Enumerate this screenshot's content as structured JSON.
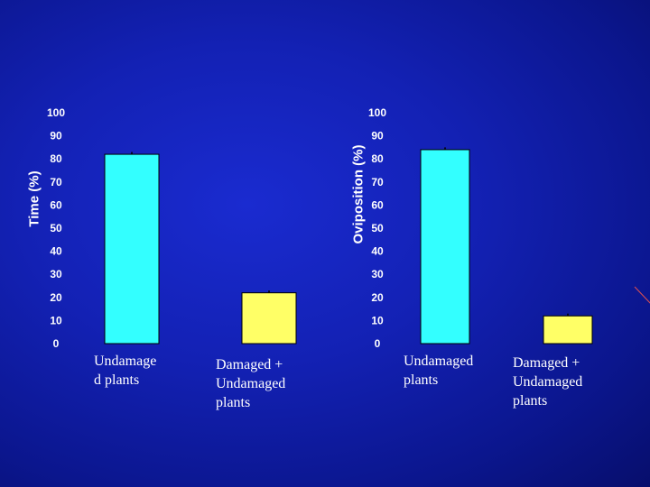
{
  "slide": {
    "background_color": "#1321b4",
    "accent_line_color": "#e05050"
  },
  "chart_data": [
    {
      "type": "bar",
      "ylabel": "Time (%)",
      "ylim": [
        0,
        100
      ],
      "yticks": [
        0,
        10,
        20,
        30,
        40,
        50,
        60,
        70,
        80,
        90,
        100
      ],
      "categories": [
        "Undamage\nd plants",
        "Damaged +\nUndamaged\nplants"
      ],
      "values": [
        82,
        22
      ],
      "errors": [
        1,
        1
      ],
      "bar_colors": [
        "#33ffff",
        "#ffff66"
      ],
      "grid": false,
      "legend": "none"
    },
    {
      "type": "bar",
      "ylabel": "Oviposition (%)",
      "ylim": [
        0,
        100
      ],
      "yticks": [
        0,
        10,
        20,
        30,
        40,
        50,
        60,
        70,
        80,
        90,
        100
      ],
      "categories": [
        "Undamaged\nplants",
        "Damaged +\nUndamaged\nplants"
      ],
      "values": [
        84,
        12
      ],
      "errors": [
        1,
        1
      ],
      "bar_colors": [
        "#33ffff",
        "#ffff66"
      ],
      "grid": false,
      "legend": "none"
    }
  ]
}
